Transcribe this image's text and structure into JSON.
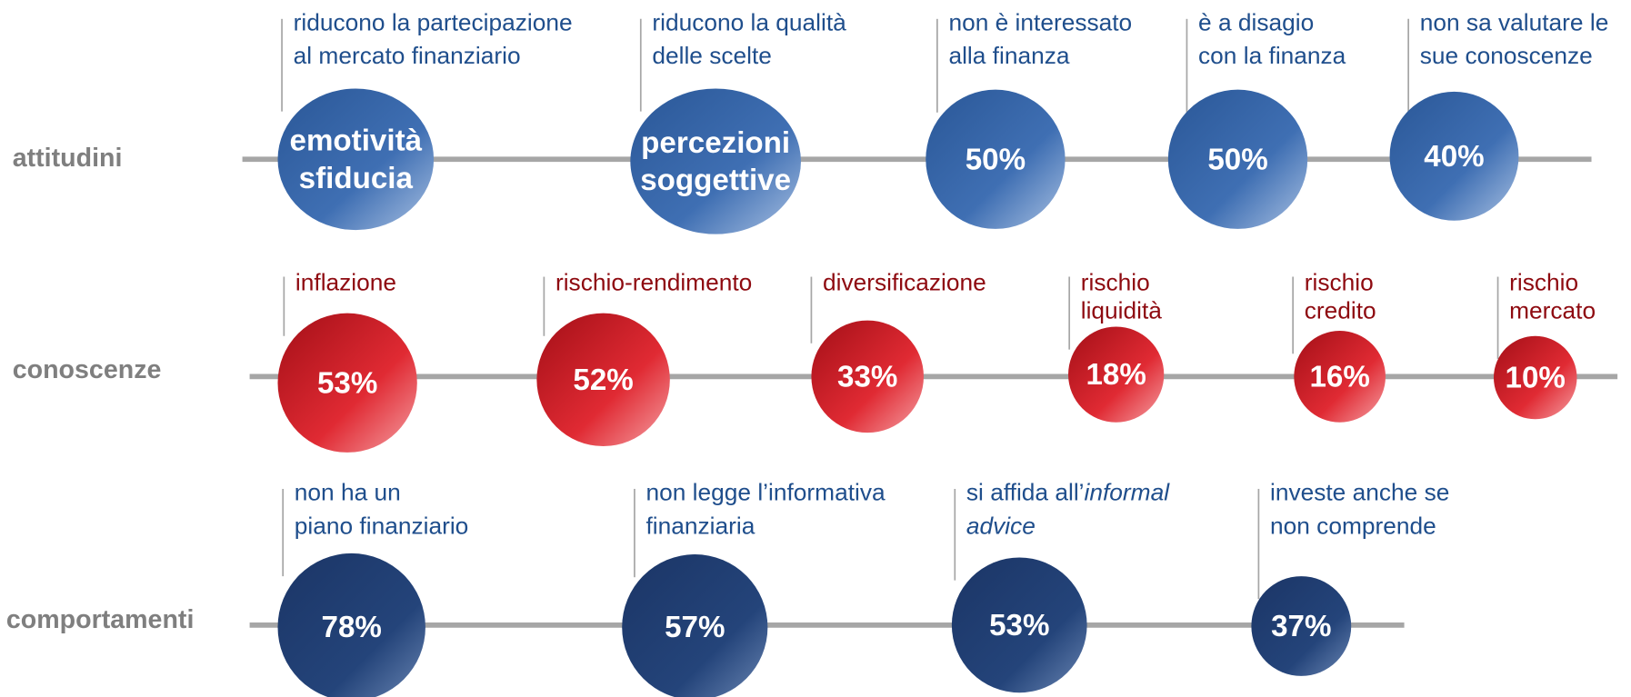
{
  "rows": [
    {
      "label": "attitudini",
      "items": [
        {
          "note": [
            [
              "riducono la partecipazione"
            ],
            [
              "al mercato finanziario"
            ]
          ],
          "bubble": [
            "emotività",
            "sfiducia"
          ]
        },
        {
          "note": [
            [
              "riducono la qualità"
            ],
            [
              "delle scelte"
            ]
          ],
          "bubble": [
            "percezioni",
            "soggettive"
          ]
        },
        {
          "note": [
            [
              "non è interessato"
            ],
            [
              "alla finanza"
            ]
          ],
          "bubble": [
            "50%"
          ]
        },
        {
          "note": [
            [
              "è a disagio"
            ],
            [
              "con la finanza"
            ]
          ],
          "bubble": [
            "50%"
          ]
        },
        {
          "note": [
            [
              "non sa valutare le"
            ],
            [
              "sue conoscenze"
            ]
          ],
          "bubble": [
            "40%"
          ]
        }
      ]
    },
    {
      "label": "conoscenze",
      "items": [
        {
          "note": [
            [
              "inflazione"
            ]
          ],
          "bubble": [
            "53%"
          ]
        },
        {
          "note": [
            [
              "rischio-rendimento"
            ]
          ],
          "bubble": [
            "52%"
          ]
        },
        {
          "note": [
            [
              "diversificazione"
            ]
          ],
          "bubble": [
            "33%"
          ]
        },
        {
          "note": [
            [
              "rischio"
            ],
            [
              "liquidità"
            ]
          ],
          "bubble": [
            "18%"
          ]
        },
        {
          "note": [
            [
              "rischio"
            ],
            [
              "credito"
            ]
          ],
          "bubble": [
            "16%"
          ]
        },
        {
          "note": [
            [
              "rischio"
            ],
            [
              "mercato"
            ]
          ],
          "bubble": [
            "10%"
          ]
        }
      ]
    },
    {
      "label": "comportamenti",
      "items": [
        {
          "note": [
            [
              "non ha un"
            ],
            [
              "piano finanziario"
            ]
          ],
          "bubble": [
            "78%"
          ]
        },
        {
          "note": [
            [
              "non legge l’informativa"
            ],
            [
              "finanziaria"
            ]
          ],
          "bubble": [
            "57%"
          ]
        },
        {
          "note": [
            [
              "si affida all’",
              "informal"
            ],
            [
              "advice"
            ]
          ],
          "italic": [
            "1",
            "0"
          ],
          "bubble": [
            "53%"
          ]
        },
        {
          "note": [
            [
              "investe anche se"
            ],
            [
              "non comprende"
            ]
          ],
          "bubble": [
            "37%"
          ]
        }
      ]
    }
  ]
}
